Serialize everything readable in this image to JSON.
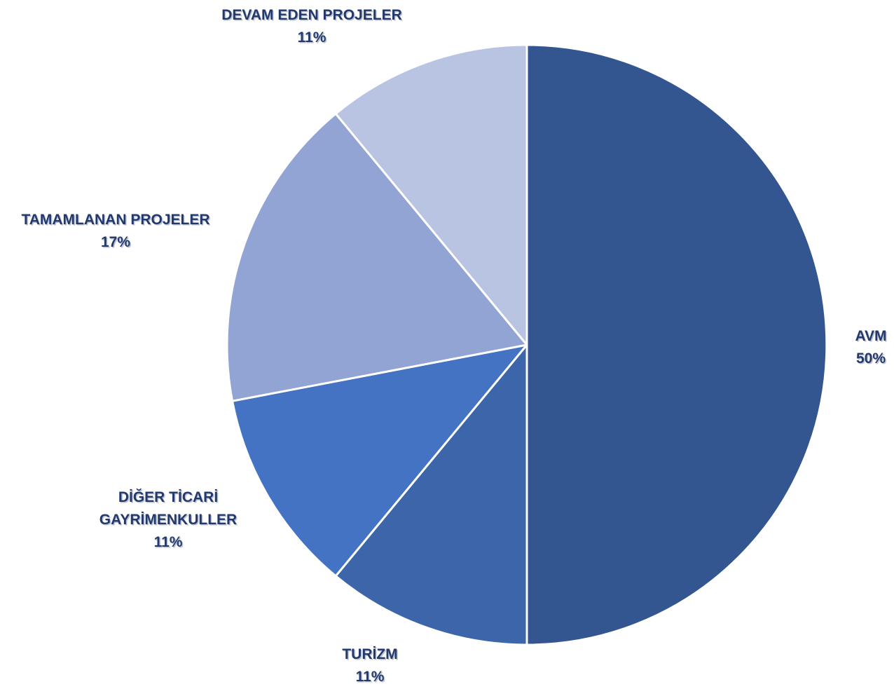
{
  "chart_data": {
    "type": "pie",
    "start_angle_deg": 0,
    "direction": "clockwise",
    "slices": [
      {
        "name": "AVM",
        "value": 50,
        "value_label": "50%",
        "label_lines": [
          "AVM"
        ],
        "color": "#335691"
      },
      {
        "name": "TURİZM",
        "value": 11,
        "value_label": "11%",
        "label_lines": [
          "TURİZM"
        ],
        "color": "#3d66aa"
      },
      {
        "name": "DİĞER TİCARİ GAYRİMENKULLER",
        "value": 11,
        "value_label": "11%",
        "label_lines": [
          "DİĞER TİCARİ",
          "GAYRİMENKULLER"
        ],
        "color": "#4473c4"
      },
      {
        "name": "TAMAMLANAN PROJELER",
        "value": 17,
        "value_label": "17%",
        "label_lines": [
          "TAMAMLANAN PROJELER"
        ],
        "color": "#91a4d3"
      },
      {
        "name": "DEVAM EDEN PROJELER",
        "value": 11,
        "value_label": "11%",
        "label_lines": [
          "DEVAM EDEN PROJELER"
        ],
        "color": "#b9c3e2"
      }
    ],
    "label_color": "#24396b",
    "legend": "none"
  }
}
